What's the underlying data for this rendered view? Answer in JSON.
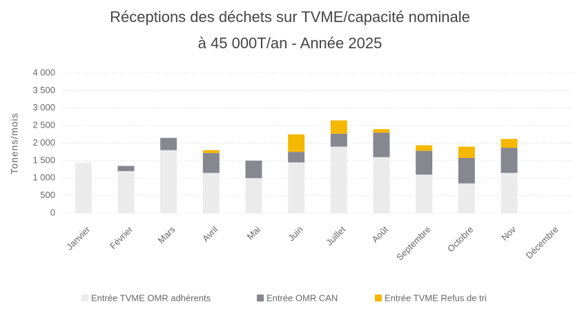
{
  "chart_data": {
    "type": "bar",
    "stacked": true,
    "title": [
      "Réceptions des déchets sur TVME/capacité nominale",
      "à 45 000T/an - Année 2025"
    ],
    "y_label": "Tonens/mois",
    "categories": [
      "Janvier",
      "Février",
      "Mars",
      "Avril",
      "Mai",
      "Juin",
      "Juillet",
      "Août",
      "Septembre",
      "Octobre",
      "Nov",
      "Décembre"
    ],
    "series": [
      {
        "name": "Entrée TVME OMR adhérents",
        "color": "#ebebeb",
        "values": [
          1450,
          1200,
          1800,
          1150,
          1000,
          1450,
          1900,
          1600,
          1100,
          850,
          1150,
          null
        ]
      },
      {
        "name": "Entrée OMR CAN",
        "color": "#878790",
        "values": [
          0,
          150,
          350,
          570,
          500,
          300,
          370,
          700,
          680,
          730,
          720,
          null
        ]
      },
      {
        "name": "Entrée TVME Refus de tri",
        "color": "#f5b700",
        "values": [
          0,
          0,
          0,
          80,
          0,
          500,
          380,
          100,
          160,
          320,
          250,
          null
        ]
      }
    ],
    "ylim": [
      0,
      4000
    ],
    "yticks": [
      0,
      500,
      {
        "value": 1000,
        "label": "1 000"
      },
      {
        "value": 1500,
        "label": "1 500"
      },
      {
        "value": 2000,
        "label": "2 000"
      },
      {
        "value": 2500,
        "label": "2 500"
      },
      {
        "value": 3000,
        "label": "3 000"
      },
      {
        "value": 3500,
        "label": "3 500"
      },
      {
        "value": 4000,
        "label": "4 000"
      }
    ],
    "grid": true,
    "legend": "bottom"
  }
}
